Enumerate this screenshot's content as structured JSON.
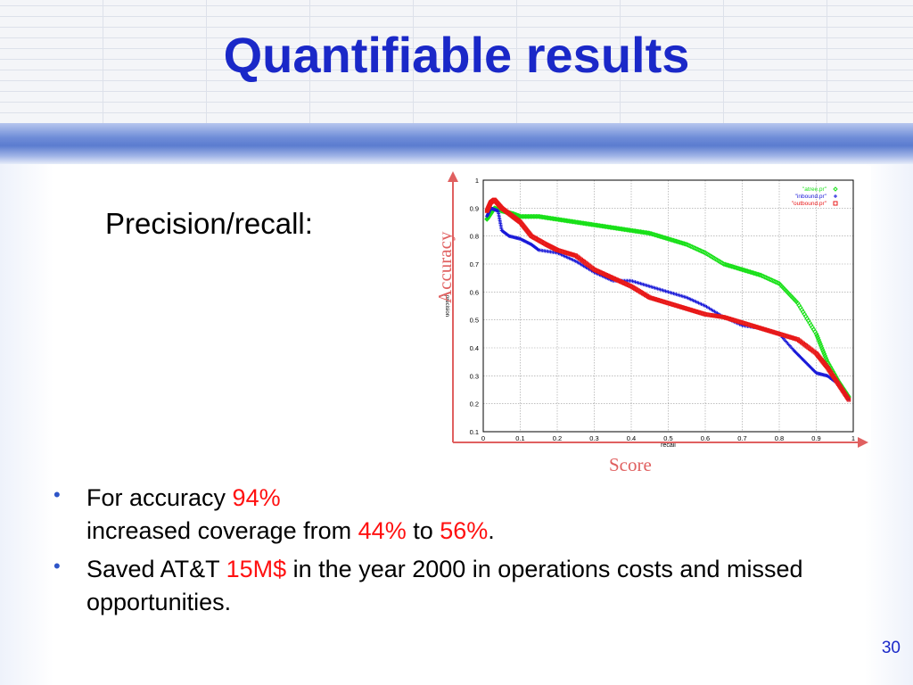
{
  "slide": {
    "title": "Quantifiable results",
    "subtitle": "Precision/recall:",
    "page_number": "30"
  },
  "annotations": {
    "y_label": "Accuracy",
    "x_label": "Score",
    "color": "#e06060"
  },
  "bullets": {
    "b1_line1_prefix": "For accuracy ",
    "b1_line1_value": "94%",
    "b1_line2_prefix": "increased coverage from ",
    "b1_from": "44%",
    "b1_mid": " to ",
    "b1_to": "56%",
    "b1_end": ".",
    "b2_prefix": "Saved AT&T ",
    "b2_value": "15M$",
    "b2_suffix": " in the year 2000 in operations costs and missed opportunities."
  },
  "colors": {
    "title": "#1a28c8",
    "highlight": "#ff1010",
    "bullet": "#2e55c8"
  },
  "chart_data": {
    "type": "scatter",
    "xlabel": "recall",
    "ylabel": "precision",
    "xlim": [
      0,
      1
    ],
    "ylim": [
      0.1,
      1
    ],
    "x_ticks": [
      "0",
      "0.1",
      "0.2",
      "0.3",
      "0.4",
      "0.5",
      "0.6",
      "0.7",
      "0.8",
      "0.9",
      "1"
    ],
    "y_ticks": [
      "0.1",
      "0.2",
      "0.3",
      "0.4",
      "0.5",
      "0.6",
      "0.7",
      "0.8",
      "0.9",
      "1"
    ],
    "grid": true,
    "legend_position": "top-right",
    "series": [
      {
        "name": "\"atree.pr\"",
        "marker": "◇",
        "color": "#18e018",
        "x": [
          0.01,
          0.02,
          0.03,
          0.05,
          0.08,
          0.1,
          0.15,
          0.2,
          0.25,
          0.3,
          0.35,
          0.4,
          0.45,
          0.5,
          0.55,
          0.6,
          0.65,
          0.7,
          0.75,
          0.8,
          0.85,
          0.9,
          0.93,
          0.96,
          0.99
        ],
        "y": [
          0.86,
          0.88,
          0.9,
          0.89,
          0.88,
          0.87,
          0.87,
          0.86,
          0.85,
          0.84,
          0.83,
          0.82,
          0.81,
          0.79,
          0.77,
          0.74,
          0.7,
          0.68,
          0.66,
          0.63,
          0.56,
          0.45,
          0.35,
          0.28,
          0.22
        ]
      },
      {
        "name": "\"inbound.pr\"",
        "marker": "+",
        "color": "#1818d8",
        "x": [
          0.01,
          0.02,
          0.04,
          0.05,
          0.07,
          0.1,
          0.13,
          0.15,
          0.2,
          0.25,
          0.3,
          0.35,
          0.4,
          0.45,
          0.5,
          0.55,
          0.6,
          0.65,
          0.7,
          0.75,
          0.8,
          0.84,
          0.87,
          0.9,
          0.93,
          0.96,
          0.99
        ],
        "y": [
          0.87,
          0.9,
          0.89,
          0.82,
          0.8,
          0.79,
          0.77,
          0.75,
          0.74,
          0.71,
          0.67,
          0.64,
          0.64,
          0.62,
          0.6,
          0.58,
          0.55,
          0.51,
          0.48,
          0.47,
          0.45,
          0.39,
          0.35,
          0.31,
          0.3,
          0.27,
          0.21
        ]
      },
      {
        "name": "\"outbound.pr\"",
        "marker": "□",
        "color": "#e81818",
        "x": [
          0.01,
          0.02,
          0.03,
          0.05,
          0.08,
          0.1,
          0.13,
          0.17,
          0.2,
          0.25,
          0.3,
          0.35,
          0.4,
          0.45,
          0.5,
          0.55,
          0.6,
          0.65,
          0.7,
          0.75,
          0.8,
          0.85,
          0.9,
          0.93,
          0.96,
          0.99
        ],
        "y": [
          0.89,
          0.92,
          0.93,
          0.9,
          0.87,
          0.85,
          0.8,
          0.77,
          0.75,
          0.73,
          0.68,
          0.65,
          0.62,
          0.58,
          0.56,
          0.54,
          0.52,
          0.51,
          0.49,
          0.47,
          0.45,
          0.43,
          0.38,
          0.33,
          0.27,
          0.21
        ]
      }
    ]
  }
}
